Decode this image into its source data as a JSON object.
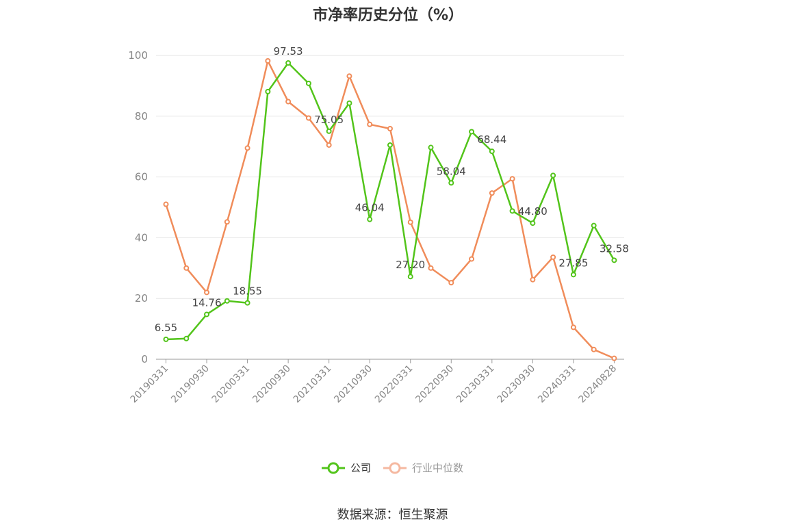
{
  "title": "市净率历史分位（%）",
  "source": "数据来源：恒生聚源",
  "colors": {
    "company": "#52c41a",
    "industry": "#f08c5a",
    "industry_legend": "#f5b8a0",
    "grid": "#e6e6e6",
    "axis": "#999999"
  },
  "chart_data": {
    "type": "line",
    "title": "市净率历史分位（%）",
    "ylim": [
      0,
      100
    ],
    "yticks": [
      0,
      20,
      40,
      60,
      80,
      100
    ],
    "x": [
      "20190331",
      "20190630",
      "20190930",
      "20191231",
      "20200331",
      "20200630",
      "20200930",
      "20201231",
      "20210331",
      "20210630",
      "20210930",
      "20211231",
      "20220331",
      "20220630",
      "20220930",
      "20221231",
      "20230331",
      "20230630",
      "20230930",
      "20231231",
      "20240331",
      "20240630",
      "20240828"
    ],
    "xticks": [
      "20190331",
      "20190930",
      "20200331",
      "20200930",
      "20210331",
      "20210930",
      "20220331",
      "20220930",
      "20230331",
      "20230930",
      "20240331",
      "20240828"
    ],
    "grid": true,
    "legend_position": "bottom",
    "series": [
      {
        "name": "公司",
        "values": [
          6.55,
          6.8,
          14.76,
          19.2,
          18.55,
          88.1,
          97.53,
          90.8,
          75.05,
          84.3,
          46.04,
          70.5,
          27.2,
          69.7,
          58.04,
          74.9,
          68.44,
          48.8,
          44.8,
          60.5,
          27.85,
          44.0,
          32.58
        ],
        "labels": [
          "6.55",
          "",
          "14.76",
          "",
          "18.55",
          "",
          "97.53",
          "",
          "75.05",
          "",
          "46.04",
          "",
          "27.20",
          "",
          "58.04",
          "",
          "68.44",
          "",
          "44.80",
          "",
          "27.85",
          "",
          "32.58"
        ]
      },
      {
        "name": "行业中位数",
        "values": [
          51.0,
          30.0,
          22.0,
          45.2,
          69.5,
          98.2,
          84.8,
          79.4,
          70.5,
          93.2,
          77.3,
          75.9,
          45.1,
          30.0,
          25.2,
          33.0,
          54.7,
          59.4,
          26.2,
          33.6,
          10.5,
          3.2,
          0.3
        ]
      }
    ]
  }
}
